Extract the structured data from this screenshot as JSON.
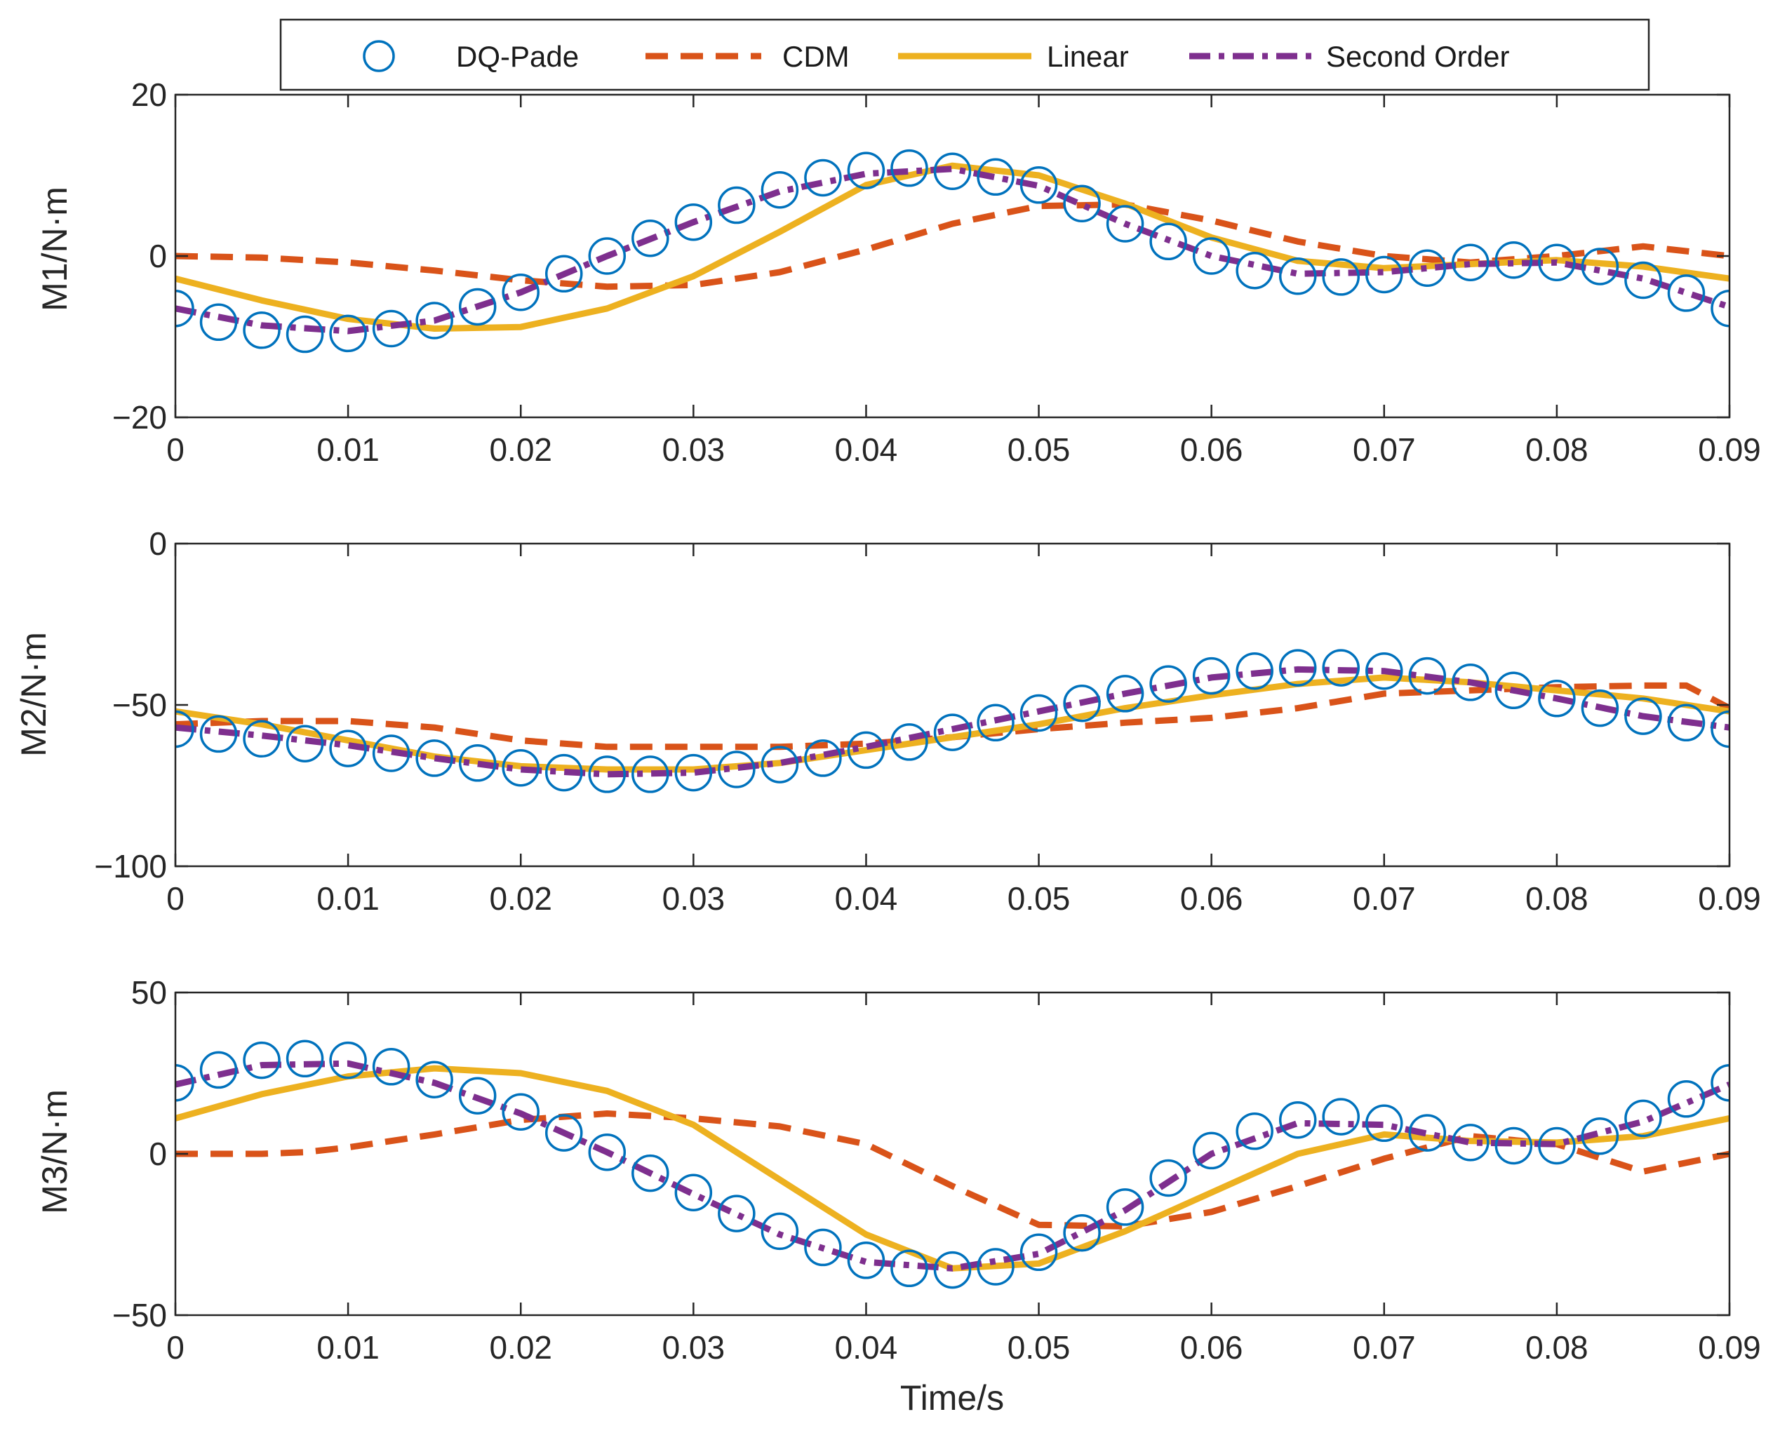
{
  "colors": {
    "dq_pade": "#0072BD",
    "cdm": "#D95319",
    "linear": "#EDB120",
    "second_order": "#7E2F8E",
    "axes": "#262626"
  },
  "legend": {
    "items": [
      {
        "key": "dq_pade",
        "label": "DQ-Pade",
        "style": "marker-circle"
      },
      {
        "key": "cdm",
        "label": "CDM",
        "style": "dashed"
      },
      {
        "key": "linear",
        "label": "Linear",
        "style": "solid"
      },
      {
        "key": "second_order",
        "label": "Second Order",
        "style": "dash-dot"
      }
    ]
  },
  "xlabel": "Time/s",
  "chart_data": [
    {
      "type": "line",
      "ylabel": "M1/N·m",
      "xlim": [
        0,
        0.09
      ],
      "ylim": [
        -20,
        20
      ],
      "xticks": [
        "0",
        "0.01",
        "0.02",
        "0.03",
        "0.04",
        "0.05",
        "0.06",
        "0.07",
        "0.08",
        "0.09"
      ],
      "yticks": [
        "−20",
        "0",
        "20"
      ],
      "ytick_values": [
        -20,
        0,
        20
      ],
      "series": [
        {
          "name": "DQ-Pade",
          "key": "dq_pade",
          "x": [
            0,
            0.0025,
            0.005,
            0.0075,
            0.01,
            0.0125,
            0.015,
            0.0175,
            0.02,
            0.0225,
            0.025,
            0.0275,
            0.03,
            0.0325,
            0.035,
            0.0375,
            0.04,
            0.0425,
            0.045,
            0.0475,
            0.05,
            0.0525,
            0.055,
            0.0575,
            0.06,
            0.0625,
            0.065,
            0.0675,
            0.07,
            0.0725,
            0.075,
            0.0775,
            0.08,
            0.0825,
            0.085,
            0.0875,
            0.09
          ],
          "y": [
            -6.5,
            -8.2,
            -9.2,
            -9.7,
            -9.6,
            -9.0,
            -8.0,
            -6.3,
            -4.5,
            -2.2,
            0,
            2.2,
            4.2,
            6.3,
            8.2,
            9.7,
            10.6,
            10.9,
            10.5,
            9.8,
            8.8,
            6.5,
            4.0,
            1.8,
            0,
            -1.8,
            -2.5,
            -2.6,
            -2.3,
            -1.5,
            -0.8,
            -0.5,
            -0.8,
            -1.3,
            -3.0,
            -4.6,
            -6.5
          ]
        },
        {
          "name": "CDM",
          "key": "cdm",
          "x": [
            0,
            0.005,
            0.01,
            0.015,
            0.02,
            0.025,
            0.03,
            0.035,
            0.04,
            0.045,
            0.05,
            0.055,
            0.06,
            0.065,
            0.07,
            0.075,
            0.08,
            0.085,
            0.09
          ],
          "y": [
            0,
            -0.2,
            -0.8,
            -1.8,
            -3.0,
            -3.8,
            -3.6,
            -2.0,
            0.8,
            4.0,
            6.2,
            6.4,
            4.4,
            1.8,
            0,
            -0.8,
            0,
            1.2,
            0
          ]
        },
        {
          "name": "Linear",
          "key": "linear",
          "x": [
            0,
            0.005,
            0.01,
            0.015,
            0.02,
            0.025,
            0.03,
            0.035,
            0.04,
            0.045,
            0.05,
            0.055,
            0.06,
            0.065,
            0.07,
            0.075,
            0.08,
            0.085,
            0.09
          ],
          "y": [
            -2.8,
            -5.5,
            -7.8,
            -9.0,
            -8.8,
            -6.5,
            -2.5,
            3.0,
            8.8,
            11.2,
            10.0,
            6.5,
            2.3,
            -0.6,
            -1.5,
            -1.0,
            -0.5,
            -1.3,
            -2.8
          ]
        },
        {
          "name": "Second Order",
          "key": "second_order",
          "x": [
            0,
            0.005,
            0.01,
            0.015,
            0.02,
            0.025,
            0.03,
            0.035,
            0.04,
            0.045,
            0.05,
            0.055,
            0.06,
            0.065,
            0.07,
            0.075,
            0.08,
            0.085,
            0.09
          ],
          "y": [
            -6.5,
            -8.6,
            -9.3,
            -8.0,
            -4.5,
            0,
            4.2,
            8.0,
            10.2,
            10.8,
            8.7,
            4.0,
            0,
            -2.2,
            -2.0,
            -1.0,
            -0.8,
            -2.8,
            -6.3
          ]
        }
      ]
    },
    {
      "type": "line",
      "ylabel": "M2/N·m",
      "xlim": [
        0,
        0.09
      ],
      "ylim": [
        -100,
        0
      ],
      "xticks": [
        "0",
        "0.01",
        "0.02",
        "0.03",
        "0.04",
        "0.05",
        "0.06",
        "0.07",
        "0.08",
        "0.09"
      ],
      "yticks": [
        "−100",
        "−50",
        "0"
      ],
      "ytick_values": [
        -100,
        -50,
        0
      ],
      "series": [
        {
          "name": "DQ-Pade",
          "key": "dq_pade",
          "x": [
            0,
            0.0025,
            0.005,
            0.0075,
            0.01,
            0.0125,
            0.015,
            0.0175,
            0.02,
            0.0225,
            0.025,
            0.0275,
            0.03,
            0.0325,
            0.035,
            0.0375,
            0.04,
            0.0425,
            0.045,
            0.0475,
            0.05,
            0.0525,
            0.055,
            0.0575,
            0.06,
            0.0625,
            0.065,
            0.0675,
            0.07,
            0.0725,
            0.075,
            0.0775,
            0.08,
            0.0825,
            0.085,
            0.0875,
            0.09
          ],
          "y": [
            -57.5,
            -59.0,
            -60.5,
            -62.0,
            -63.5,
            -65.0,
            -66.5,
            -68.0,
            -69.5,
            -71.0,
            -71.5,
            -71.5,
            -71.0,
            -70.0,
            -68.5,
            -66.5,
            -64.0,
            -61.5,
            -58.5,
            -55.5,
            -52.5,
            -49.5,
            -46.5,
            -43.5,
            -41.0,
            -39.5,
            -38.5,
            -38.5,
            -39.5,
            -41.0,
            -43.0,
            -45.5,
            -48.0,
            -51.0,
            -53.5,
            -55.5,
            -57.5
          ]
        },
        {
          "name": "CDM",
          "key": "cdm",
          "x": [
            0,
            0.005,
            0.01,
            0.015,
            0.02,
            0.025,
            0.03,
            0.035,
            0.04,
            0.045,
            0.05,
            0.055,
            0.06,
            0.065,
            0.07,
            0.075,
            0.08,
            0.085,
            0.0875,
            0.09
          ],
          "y": [
            -56.0,
            -55.0,
            -55.0,
            -57.0,
            -61.0,
            -63.0,
            -63.0,
            -63.0,
            -62.0,
            -60.0,
            -57.5,
            -55.5,
            -54.0,
            -51.0,
            -46.5,
            -45.5,
            -44.5,
            -44.0,
            -44.0,
            -51.0
          ]
        },
        {
          "name": "Linear",
          "key": "linear",
          "x": [
            0,
            0.005,
            0.01,
            0.015,
            0.02,
            0.025,
            0.03,
            0.035,
            0.04,
            0.045,
            0.05,
            0.055,
            0.06,
            0.065,
            0.07,
            0.075,
            0.08,
            0.085,
            0.09
          ],
          "y": [
            -52.0,
            -56.0,
            -61.0,
            -66.0,
            -69.0,
            -70.0,
            -70.0,
            -68.0,
            -64.0,
            -60.0,
            -56.0,
            -51.0,
            -47.0,
            -43.5,
            -41.5,
            -43.0,
            -45.5,
            -48.0,
            -52.0
          ]
        },
        {
          "name": "Second Order",
          "key": "second_order",
          "x": [
            0,
            0.005,
            0.01,
            0.015,
            0.02,
            0.025,
            0.03,
            0.035,
            0.04,
            0.045,
            0.05,
            0.055,
            0.06,
            0.065,
            0.07,
            0.075,
            0.08,
            0.085,
            0.09
          ],
          "y": [
            -57.0,
            -59.5,
            -62.5,
            -66.5,
            -70.0,
            -71.5,
            -71.0,
            -68.0,
            -63.0,
            -57.5,
            -52.0,
            -46.5,
            -41.5,
            -39.0,
            -39.5,
            -43.0,
            -48.0,
            -53.5,
            -57.0
          ]
        }
      ]
    },
    {
      "type": "line",
      "ylabel": "M3/N·m",
      "xlim": [
        0,
        0.09
      ],
      "ylim": [
        -50,
        50
      ],
      "xticks": [
        "0",
        "0.01",
        "0.02",
        "0.03",
        "0.04",
        "0.05",
        "0.06",
        "0.07",
        "0.08",
        "0.09"
      ],
      "yticks": [
        "−50",
        "0",
        "50"
      ],
      "ytick_values": [
        -50,
        0,
        50
      ],
      "series": [
        {
          "name": "DQ-Pade",
          "key": "dq_pade",
          "x": [
            0,
            0.0025,
            0.005,
            0.0075,
            0.01,
            0.0125,
            0.015,
            0.0175,
            0.02,
            0.0225,
            0.025,
            0.0275,
            0.03,
            0.0325,
            0.035,
            0.0375,
            0.04,
            0.0425,
            0.045,
            0.0475,
            0.05,
            0.0525,
            0.055,
            0.0575,
            0.06,
            0.0625,
            0.065,
            0.0675,
            0.07,
            0.0725,
            0.075,
            0.0775,
            0.08,
            0.0825,
            0.085,
            0.0875,
            0.09
          ],
          "y": [
            22.0,
            26.0,
            29.0,
            29.5,
            29.0,
            27.0,
            23.0,
            18.0,
            13.0,
            6.5,
            0.5,
            -6.0,
            -12.0,
            -18.5,
            -24.0,
            -29.0,
            -33.0,
            -35.5,
            -36.0,
            -35.0,
            -30.5,
            -24.5,
            -16.5,
            -7.5,
            1.0,
            7.0,
            10.5,
            11.5,
            9.5,
            6.5,
            3.5,
            2.5,
            2.5,
            5.5,
            11.0,
            17.0,
            22.0
          ]
        },
        {
          "name": "CDM",
          "key": "cdm",
          "x": [
            0,
            0.005,
            0.0075,
            0.01,
            0.015,
            0.02,
            0.025,
            0.03,
            0.035,
            0.04,
            0.045,
            0.05,
            0.055,
            0.06,
            0.065,
            0.07,
            0.075,
            0.08,
            0.085,
            0.09
          ],
          "y": [
            0,
            0,
            0.5,
            2.0,
            6.0,
            10.5,
            12.5,
            11.0,
            8.5,
            3.0,
            -10.0,
            -22.0,
            -22.5,
            -18.0,
            -10.0,
            -1.5,
            5.5,
            3.0,
            -5.5,
            0
          ]
        },
        {
          "name": "Linear",
          "key": "linear",
          "x": [
            0,
            0.005,
            0.01,
            0.015,
            0.02,
            0.025,
            0.03,
            0.035,
            0.04,
            0.045,
            0.05,
            0.055,
            0.06,
            0.065,
            0.07,
            0.075,
            0.08,
            0.085,
            0.09
          ],
          "y": [
            11.0,
            18.5,
            24.0,
            26.5,
            25.0,
            19.5,
            9.0,
            -8.0,
            -25.0,
            -35.5,
            -34.0,
            -24.0,
            -12.0,
            0,
            6.0,
            4.0,
            3.5,
            5.5,
            11.0
          ]
        },
        {
          "name": "Second Order",
          "key": "second_order",
          "x": [
            0,
            0.005,
            0.01,
            0.015,
            0.02,
            0.025,
            0.03,
            0.035,
            0.04,
            0.045,
            0.05,
            0.055,
            0.06,
            0.065,
            0.07,
            0.075,
            0.08,
            0.085,
            0.09
          ],
          "y": [
            21.5,
            27.5,
            28.0,
            22.0,
            12.5,
            0.5,
            -12.5,
            -25.0,
            -33.5,
            -35.5,
            -31.0,
            -17.5,
            0,
            9.5,
            9.0,
            3.5,
            3.0,
            10.0,
            21.5
          ]
        }
      ]
    }
  ]
}
